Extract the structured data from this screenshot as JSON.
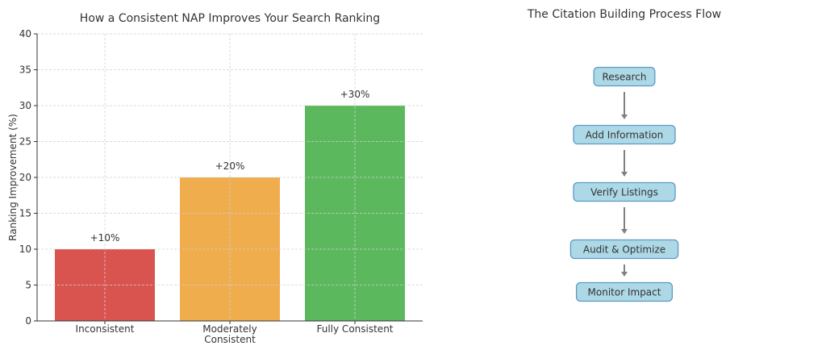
{
  "chart_data": [
    {
      "type": "bar",
      "title": "How a Consistent NAP Improves Your Search Ranking",
      "xlabel": "",
      "ylabel": "Ranking Improvement (%)",
      "categories": [
        "Inconsistent",
        "Moderately\nConsistent",
        "Fully Consistent"
      ],
      "values": [
        10,
        20,
        30
      ],
      "data_labels": [
        "+10%",
        "+20%",
        "+30%"
      ],
      "colors": [
        "#d9534f",
        "#f0ad4e",
        "#5cb85c"
      ],
      "ylim": [
        0,
        40
      ],
      "yticks": [
        0,
        5,
        10,
        15,
        20,
        25,
        30,
        35,
        40
      ],
      "grid": true
    }
  ],
  "flow": {
    "title": "The Citation Building Process Flow",
    "steps": [
      "Research",
      "Add Information",
      "Verify Listings",
      "Audit & Optimize",
      "Monitor Impact"
    ],
    "box_color": "#add8e6",
    "border_color": "#5b9ac6",
    "arrow_color": "#808080"
  }
}
